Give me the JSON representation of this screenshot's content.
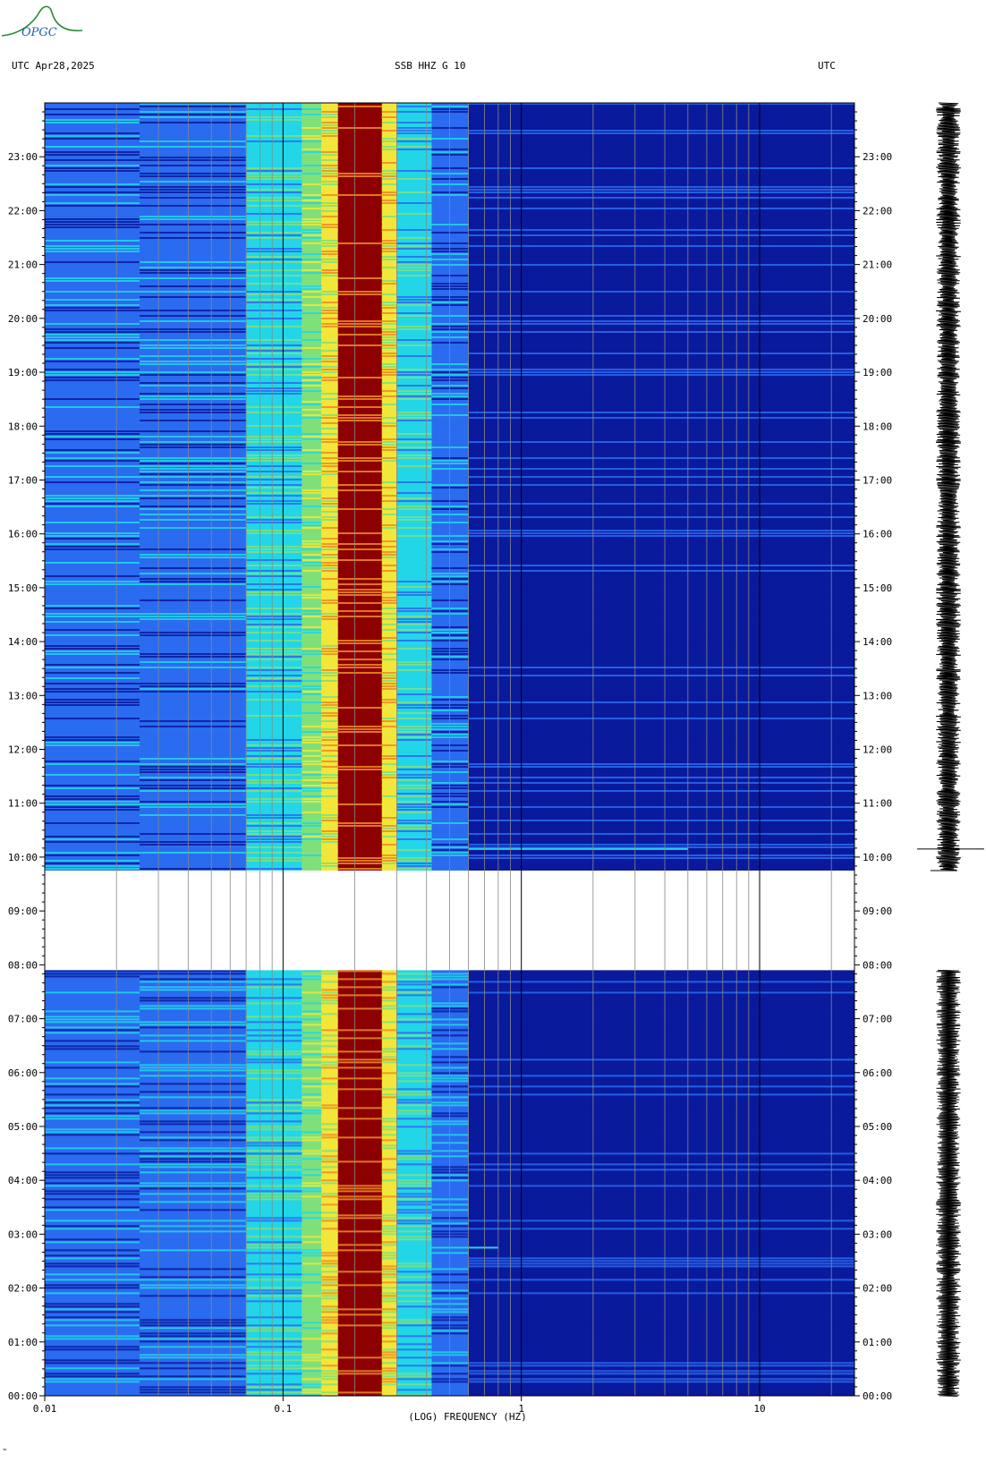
{
  "logo": {
    "text": "OPGC",
    "color": "#2a8a3a",
    "text_color": "#1f5fa8"
  },
  "header": {
    "left_label": "UTC  Apr28,2025",
    "center_label": "SSB HHZ G 10",
    "right_label": "UTC"
  },
  "footnote": "\"",
  "colors": {
    "low": "#0a1a9c",
    "mid": "#2a6bf0",
    "cyan": "#22d6e8",
    "green": "#7fe07a",
    "yellow": "#f2e63a",
    "orange": "#f08a24",
    "high": "#8c0000"
  },
  "chart_data": {
    "type": "heatmap",
    "title": "SSB HHZ G 10",
    "xlabel": "(LOG) FREQUENCY (HZ)",
    "x_scale": "log",
    "xlim": [
      0.01,
      25
    ],
    "x_ticks": [
      {
        "value": 0.01,
        "label": "0.01"
      },
      {
        "value": 0.1,
        "label": "0.1"
      },
      {
        "value": 1,
        "label": "1"
      },
      {
        "value": 10,
        "label": "10"
      }
    ],
    "ylabel": "UTC",
    "ylim_hours": [
      0,
      24
    ],
    "y_ticks": [
      {
        "value": 0,
        "label": "00:00"
      },
      {
        "value": 1,
        "label": "01:00"
      },
      {
        "value": 2,
        "label": "02:00"
      },
      {
        "value": 3,
        "label": "03:00"
      },
      {
        "value": 4,
        "label": "04:00"
      },
      {
        "value": 5,
        "label": "05:00"
      },
      {
        "value": 6,
        "label": "06:00"
      },
      {
        "value": 7,
        "label": "07:00"
      },
      {
        "value": 8,
        "label": "08:00"
      },
      {
        "value": 9,
        "label": "09:00"
      },
      {
        "value": 10,
        "label": "10:00"
      },
      {
        "value": 11,
        "label": "11:00"
      },
      {
        "value": 12,
        "label": "12:00"
      },
      {
        "value": 13,
        "label": "13:00"
      },
      {
        "value": 14,
        "label": "14:00"
      },
      {
        "value": 15,
        "label": "15:00"
      },
      {
        "value": 16,
        "label": "16:00"
      },
      {
        "value": 17,
        "label": "17:00"
      },
      {
        "value": 18,
        "label": "18:00"
      },
      {
        "value": 19,
        "label": "19:00"
      },
      {
        "value": 20,
        "label": "20:00"
      },
      {
        "value": 21,
        "label": "21:00"
      },
      {
        "value": 22,
        "label": "22:00"
      },
      {
        "value": 23,
        "label": "23:00"
      }
    ],
    "data_gap_hours": [
      7.9,
      9.75
    ],
    "spectral_bands": [
      {
        "f_start": 0.01,
        "f_end": 0.025,
        "level": "mid"
      },
      {
        "f_start": 0.025,
        "f_end": 0.07,
        "level": "mid"
      },
      {
        "f_start": 0.07,
        "f_end": 0.12,
        "level": "cyan"
      },
      {
        "f_start": 0.12,
        "f_end": 0.145,
        "level": "green"
      },
      {
        "f_start": 0.145,
        "f_end": 0.17,
        "level": "yellow"
      },
      {
        "f_start": 0.17,
        "f_end": 0.26,
        "level": "high"
      },
      {
        "f_start": 0.26,
        "f_end": 0.3,
        "level": "yellow"
      },
      {
        "f_start": 0.3,
        "f_end": 0.42,
        "level": "cyan"
      },
      {
        "f_start": 0.42,
        "f_end": 0.6,
        "level": "mid"
      },
      {
        "f_start": 0.6,
        "f_end": 25,
        "level": "low"
      }
    ],
    "events": [
      {
        "hour": 10.15,
        "f_start": 0.6,
        "f_end": 5.0
      },
      {
        "hour": 2.75,
        "f_start": 0.4,
        "f_end": 0.8
      }
    ],
    "grid_frequencies": [
      0.02,
      0.03,
      0.04,
      0.05,
      0.06,
      0.07,
      0.08,
      0.09,
      0.1,
      0.2,
      0.3,
      0.4,
      0.5,
      0.6,
      0.7,
      0.8,
      0.9,
      1,
      2,
      3,
      4,
      5,
      6,
      7,
      8,
      9,
      10,
      20
    ]
  }
}
